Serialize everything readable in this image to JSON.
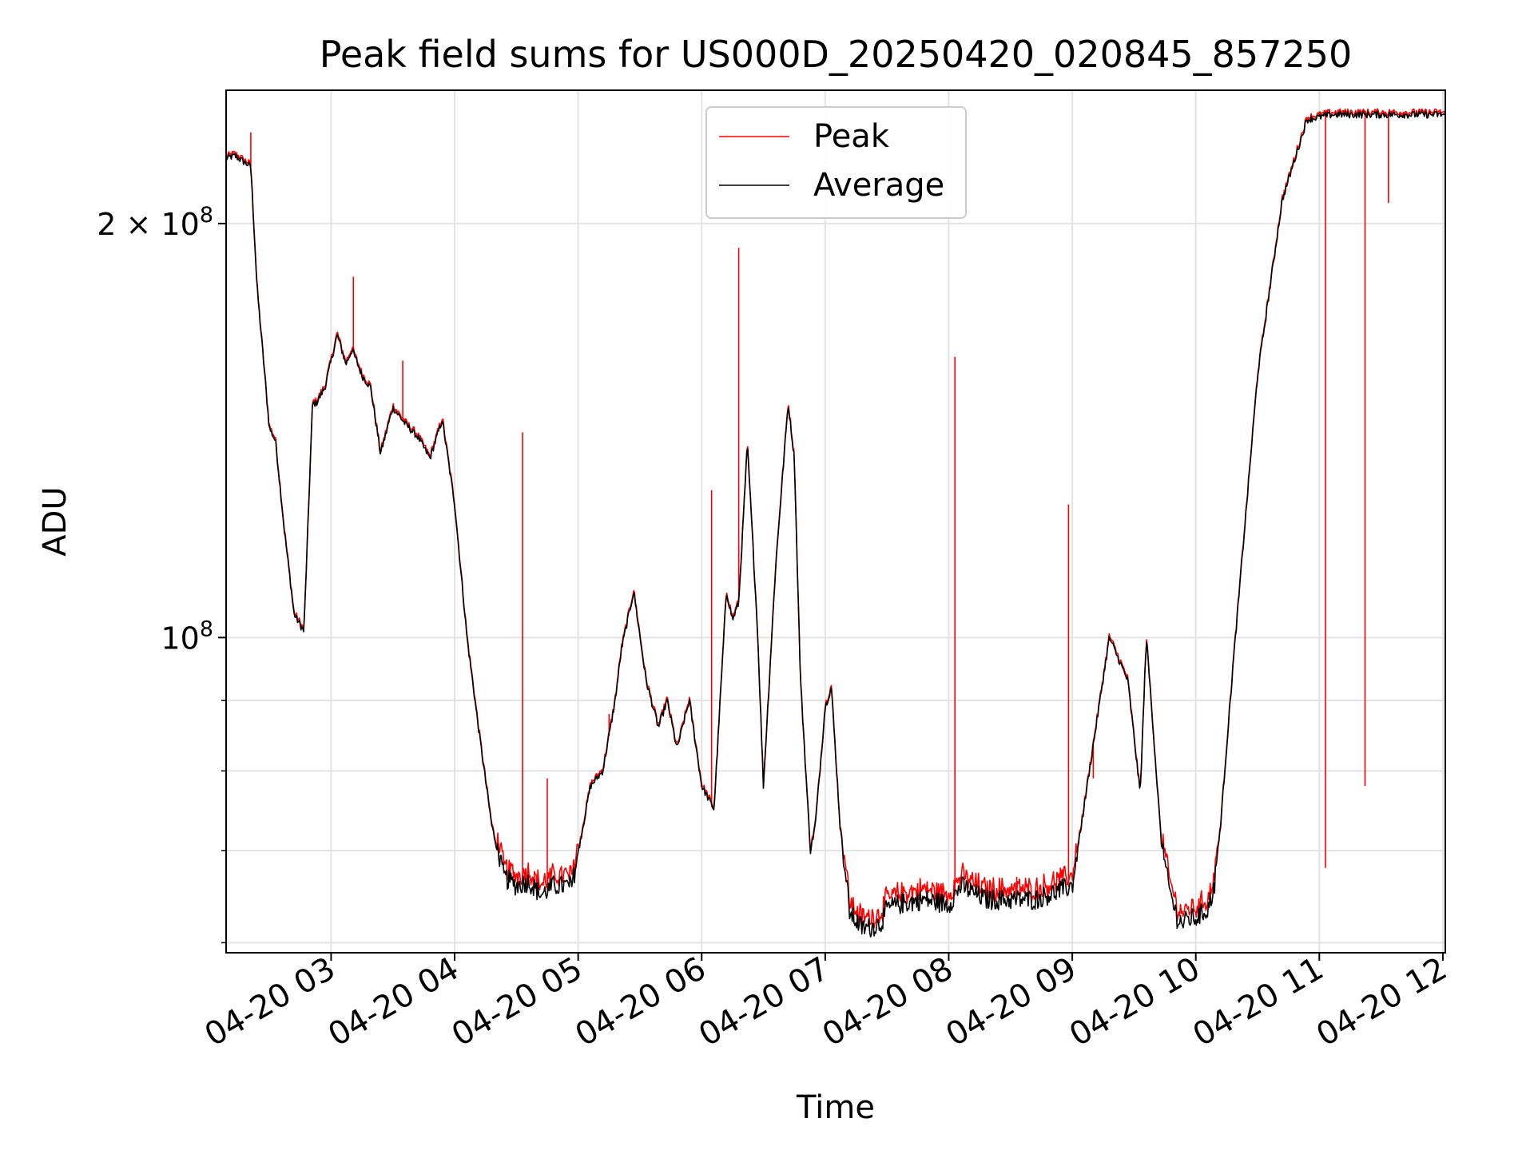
{
  "chart_data": {
    "type": "line",
    "title": "Peak field sums for US000D_20250420_020845_857250",
    "xlabel": "Time",
    "ylabel": "ADU",
    "yscale": "log",
    "ylim": [
      59000000,
      250000000
    ],
    "xlim_hours": [
      2.15,
      12.02
    ],
    "grid": true,
    "legend_position": "upper center",
    "x_tick_labels": [
      "04-20 03",
      "04-20 04",
      "04-20 05",
      "04-20 06",
      "04-20 07",
      "04-20 08",
      "04-20 09",
      "04-20 10",
      "04-20 11",
      "04-20 12"
    ],
    "x_tick_hours": [
      3,
      4,
      5,
      6,
      7,
      8,
      9,
      10,
      11,
      12
    ],
    "y_major_ticks": [
      {
        "value": 100000000,
        "label": "10",
        "exp": "8",
        "coef": ""
      },
      {
        "value": 200000000,
        "label": "10",
        "exp": "8",
        "coef": "2 × "
      }
    ],
    "y_minor_ticks": [
      60000000,
      70000000,
      80000000,
      90000000
    ],
    "series": [
      {
        "name": "Average",
        "color": "#000000",
        "x_hours": [
          2.15,
          2.22,
          2.35,
          2.4,
          2.5,
          2.55,
          2.62,
          2.7,
          2.78,
          2.85,
          2.88,
          2.95,
          3.05,
          3.12,
          3.17,
          3.25,
          3.32,
          3.4,
          3.5,
          3.6,
          3.7,
          3.8,
          3.9,
          4.0,
          4.1,
          4.2,
          4.3,
          4.4,
          4.5,
          4.6,
          4.7,
          4.8,
          4.95,
          5.1,
          5.2,
          5.3,
          5.35,
          5.45,
          5.55,
          5.65,
          5.72,
          5.8,
          5.9,
          6.0,
          6.1,
          6.2,
          6.25,
          6.3,
          6.37,
          6.45,
          6.5,
          6.6,
          6.7,
          6.75,
          6.8,
          6.88,
          6.92,
          7.0,
          7.05,
          7.12,
          7.2,
          7.3,
          7.35,
          7.45,
          7.5,
          7.6,
          7.8,
          8.0,
          8.1,
          8.3,
          8.5,
          8.7,
          9.0,
          9.3,
          9.45,
          9.55,
          9.6,
          9.65,
          9.72,
          9.78,
          9.85,
          9.9,
          9.95,
          10.0,
          10.05,
          10.1,
          10.15,
          10.2,
          10.3,
          10.5,
          10.7,
          10.9,
          11.1,
          11.3,
          11.45,
          11.6,
          11.75,
          11.85,
          11.95,
          12.02
        ],
        "values": [
          223000000,
          224000000,
          220000000,
          180000000,
          142000000,
          139000000,
          120000000,
          104000000,
          101000000,
          148000000,
          148000000,
          152000000,
          166000000,
          158000000,
          162000000,
          155000000,
          152000000,
          136000000,
          147000000,
          143000000,
          140000000,
          135000000,
          144000000,
          125000000,
          100000000,
          85000000,
          73000000,
          67000000,
          66000000,
          66500000,
          65000000,
          66000000,
          66000000,
          78000000,
          80000000,
          90000000,
          98000000,
          108000000,
          93000000,
          86000000,
          90000000,
          83000000,
          90000000,
          78000000,
          75000000,
          108000000,
          103000000,
          106000000,
          138000000,
          102000000,
          78000000,
          113000000,
          148000000,
          135000000,
          93000000,
          70000000,
          73000000,
          89000000,
          92000000,
          73000000,
          63000000,
          61500000,
          61500000,
          62000000,
          63500000,
          64000000,
          64500000,
          64000000,
          66000000,
          64500000,
          64500000,
          64500000,
          66000000,
          100000000,
          93000000,
          77000000,
          100000000,
          87000000,
          71000000,
          66000000,
          62500000,
          62000000,
          62500000,
          62500000,
          63000000,
          63500000,
          66000000,
          73000000,
          95000000,
          155000000,
          208000000,
          238000000,
          240000000,
          240000000,
          240000000,
          240000000,
          240000000,
          240000000,
          240000000,
          240000000
        ]
      },
      {
        "name": "Peak",
        "color": "#ff0000",
        "spikes": [
          {
            "x": 2.35,
            "y": 233000000
          },
          {
            "x": 3.18,
            "y": 183000000
          },
          {
            "x": 3.58,
            "y": 159000000
          },
          {
            "x": 4.55,
            "y": 141000000
          },
          {
            "x": 4.75,
            "y": 79000000
          },
          {
            "x": 5.25,
            "y": 88000000
          },
          {
            "x": 6.08,
            "y": 128000000
          },
          {
            "x": 6.3,
            "y": 192000000
          },
          {
            "x": 8.05,
            "y": 160000000
          },
          {
            "x": 8.09,
            "y": 67000000
          },
          {
            "x": 8.55,
            "y": 67000000
          },
          {
            "x": 8.97,
            "y": 125000000
          },
          {
            "x": 9.17,
            "y": 79000000
          },
          {
            "x": 11.05,
            "y": 68000000
          },
          {
            "x": 11.37,
            "y": 78000000
          },
          {
            "x": 11.56,
            "y": 207000000
          }
        ]
      }
    ]
  }
}
